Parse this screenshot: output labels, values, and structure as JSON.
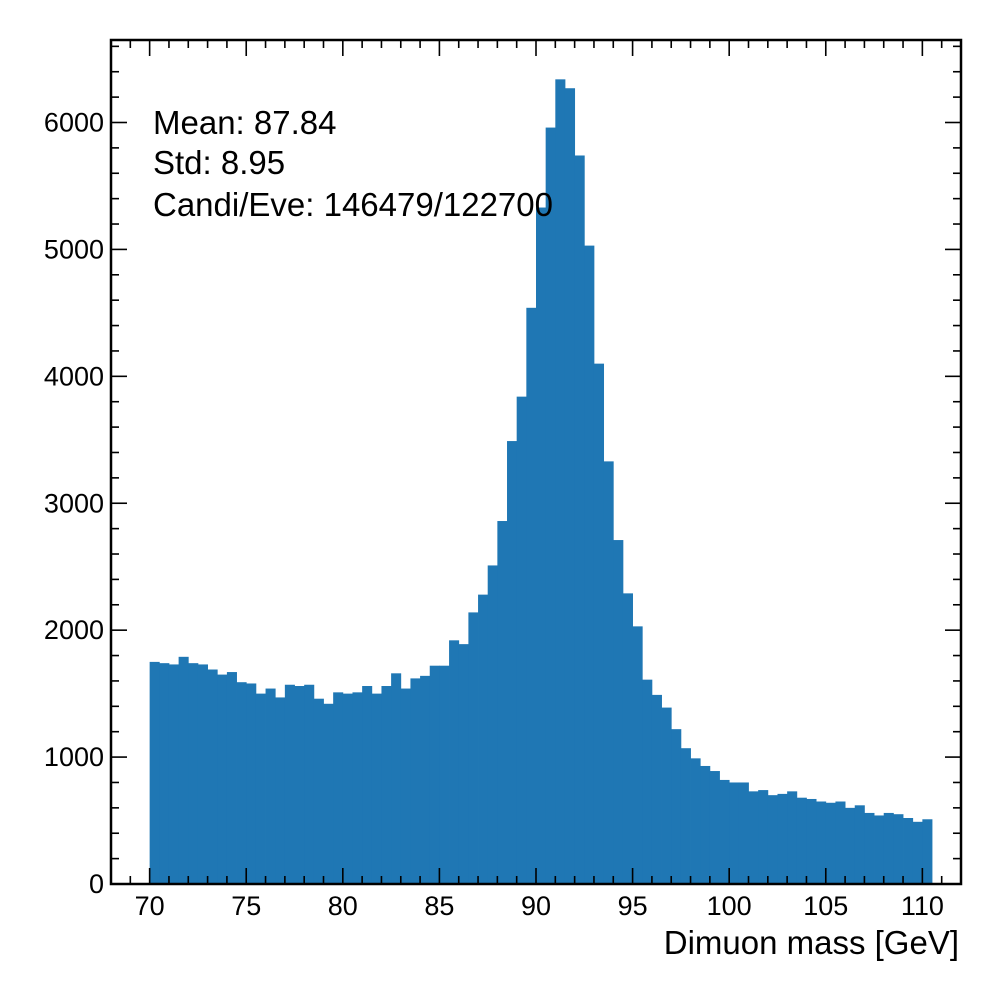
{
  "chart_data": {
    "type": "bar",
    "histogram": true,
    "bin_start": 70,
    "bin_width": 0.5,
    "values": [
      1750,
      1740,
      1730,
      1790,
      1740,
      1730,
      1690,
      1650,
      1670,
      1590,
      1580,
      1500,
      1540,
      1470,
      1570,
      1560,
      1570,
      1460,
      1420,
      1510,
      1500,
      1510,
      1560,
      1500,
      1560,
      1660,
      1540,
      1620,
      1640,
      1720,
      1720,
      1920,
      1890,
      2140,
      2280,
      2510,
      2860,
      3490,
      3840,
      4540,
      5330,
      5960,
      6340,
      6270,
      5740,
      5030,
      4100,
      3330,
      2710,
      2290,
      2030,
      1610,
      1490,
      1390,
      1220,
      1070,
      990,
      930,
      890,
      820,
      800,
      800,
      730,
      740,
      700,
      710,
      730,
      680,
      670,
      650,
      640,
      650,
      600,
      620,
      560,
      540,
      560,
      550,
      520,
      490,
      510
    ],
    "xlabel": "Dimuon mass [GeV]",
    "ylabel": "",
    "xlim": [
      68,
      112
    ],
    "ylim": [
      0,
      6650
    ],
    "xticks": [
      70,
      75,
      80,
      85,
      90,
      95,
      100,
      105,
      110
    ],
    "yticks": [
      0,
      1000,
      2000,
      3000,
      4000,
      5000,
      6000
    ],
    "bar_color": "#1f77b4",
    "annotations": [
      "Mean: 87.84",
      "Std: 8.95",
      "Candi/Eve: 146479/122700"
    ],
    "grid": false,
    "legend": "none"
  }
}
